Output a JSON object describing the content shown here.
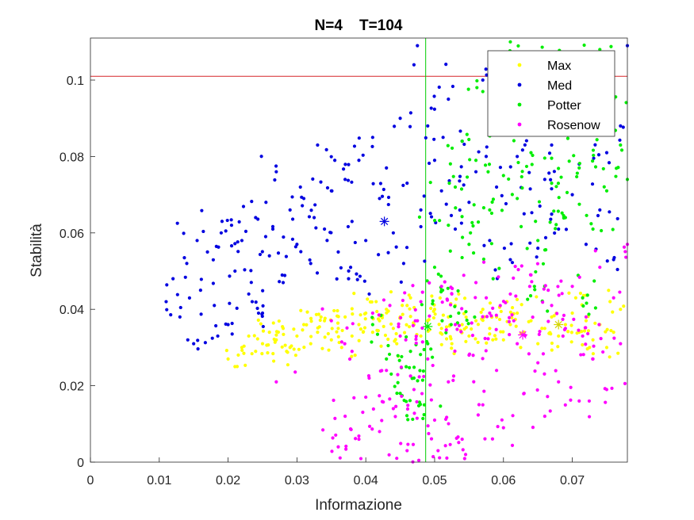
{
  "chart_data": {
    "type": "scatter",
    "title": "N=4    T=104",
    "xlabel": "Informazione",
    "ylabel": "Stabilità",
    "xlim": [
      0,
      0.078
    ],
    "ylim": [
      0,
      0.111
    ],
    "xticks": [
      "0",
      "0.01",
      "0.02",
      "0.03",
      "0.04",
      "0.05",
      "0.06",
      "0.07"
    ],
    "xtick_values": [
      0,
      0.01,
      0.02,
      0.03,
      0.04,
      0.05,
      0.06,
      0.07
    ],
    "yticks": [
      "0",
      "0.02",
      "0.04",
      "0.06",
      "0.08",
      "0.1"
    ],
    "ytick_values": [
      0,
      0.02,
      0.04,
      0.06,
      0.08,
      0.1
    ],
    "grid": false,
    "legend_position": "top-right",
    "reference_lines": [
      {
        "orientation": "horizontal",
        "value": 0.101,
        "color": "#d62728"
      },
      {
        "orientation": "vertical",
        "value": 0.0487,
        "color": "#00cc00"
      }
    ],
    "series": [
      {
        "name": "Max",
        "color": "#ffff00",
        "x_range": [
          0.019,
          0.078
        ],
        "y_range": [
          0.025,
          0.045
        ],
        "centroid": [
          0.068,
          0.036
        ],
        "points": [
          [
            0.02,
            0.027
          ],
          [
            0.021,
            0.025
          ],
          [
            0.022,
            0.03
          ],
          [
            0.023,
            0.033
          ],
          [
            0.024,
            0.029
          ],
          [
            0.025,
            0.031
          ],
          [
            0.026,
            0.034
          ],
          [
            0.027,
            0.032
          ],
          [
            0.028,
            0.035
          ],
          [
            0.029,
            0.03
          ],
          [
            0.03,
            0.033
          ],
          [
            0.031,
            0.036
          ],
          [
            0.032,
            0.031
          ],
          [
            0.033,
            0.034
          ],
          [
            0.034,
            0.037
          ],
          [
            0.035,
            0.032
          ],
          [
            0.036,
            0.035
          ],
          [
            0.037,
            0.038
          ],
          [
            0.038,
            0.033
          ],
          [
            0.039,
            0.036
          ],
          [
            0.04,
            0.039
          ],
          [
            0.041,
            0.034
          ],
          [
            0.042,
            0.037
          ],
          [
            0.043,
            0.04
          ],
          [
            0.044,
            0.035
          ],
          [
            0.045,
            0.038
          ],
          [
            0.046,
            0.041
          ],
          [
            0.047,
            0.036
          ],
          [
            0.048,
            0.033
          ],
          [
            0.049,
            0.037
          ],
          [
            0.05,
            0.04
          ],
          [
            0.051,
            0.035
          ],
          [
            0.052,
            0.038
          ],
          [
            0.053,
            0.041
          ],
          [
            0.054,
            0.036
          ],
          [
            0.055,
            0.033
          ],
          [
            0.056,
            0.037
          ],
          [
            0.057,
            0.04
          ],
          [
            0.058,
            0.035
          ],
          [
            0.059,
            0.038
          ],
          [
            0.06,
            0.032
          ],
          [
            0.061,
            0.036
          ],
          [
            0.062,
            0.039
          ],
          [
            0.063,
            0.034
          ],
          [
            0.064,
            0.037
          ],
          [
            0.065,
            0.031
          ],
          [
            0.066,
            0.035
          ],
          [
            0.067,
            0.038
          ],
          [
            0.068,
            0.033
          ],
          [
            0.069,
            0.036
          ],
          [
            0.07,
            0.039
          ],
          [
            0.071,
            0.034
          ],
          [
            0.072,
            0.037
          ],
          [
            0.073,
            0.032
          ],
          [
            0.074,
            0.036
          ],
          [
            0.075,
            0.03
          ],
          [
            0.076,
            0.034
          ],
          [
            0.077,
            0.04
          ],
          [
            0.0335,
            0.038
          ],
          [
            0.0415,
            0.042
          ],
          [
            0.0465,
            0.043
          ],
          [
            0.0535,
            0.044
          ],
          [
            0.0605,
            0.042
          ],
          [
            0.0705,
            0.043
          ],
          [
            0.0285,
            0.029
          ],
          [
            0.0365,
            0.03
          ],
          [
            0.0445,
            0.031
          ],
          [
            0.0525,
            0.031
          ],
          [
            0.0625,
            0.03
          ],
          [
            0.0725,
            0.03
          ]
        ]
      },
      {
        "name": "Med",
        "color": "#0000e0",
        "x_range": [
          0.011,
          0.078
        ],
        "y_range": [
          0.028,
          0.11
        ],
        "centroid": [
          0.0427,
          0.063
        ],
        "points": [
          [
            0.011,
            0.042
          ],
          [
            0.012,
            0.048
          ],
          [
            0.013,
            0.038
          ],
          [
            0.014,
            0.052
          ],
          [
            0.015,
            0.031
          ],
          [
            0.016,
            0.045
          ],
          [
            0.017,
            0.055
          ],
          [
            0.018,
            0.041
          ],
          [
            0.019,
            0.06
          ],
          [
            0.02,
            0.036
          ],
          [
            0.021,
            0.05
          ],
          [
            0.022,
            0.058
          ],
          [
            0.023,
            0.044
          ],
          [
            0.024,
            0.064
          ],
          [
            0.025,
            0.039
          ],
          [
            0.026,
            0.054
          ],
          [
            0.027,
            0.076
          ],
          [
            0.028,
            0.047
          ],
          [
            0.029,
            0.066
          ],
          [
            0.03,
            0.057
          ],
          [
            0.031,
            0.069
          ],
          [
            0.032,
            0.052
          ],
          [
            0.033,
            0.083
          ],
          [
            0.034,
            0.061
          ],
          [
            0.035,
            0.071
          ],
          [
            0.036,
            0.055
          ],
          [
            0.037,
            0.074
          ],
          [
            0.038,
            0.063
          ],
          [
            0.039,
            0.079
          ],
          [
            0.04,
            0.058
          ],
          [
            0.041,
            0.085
          ],
          [
            0.042,
            0.069
          ],
          [
            0.043,
            0.077
          ],
          [
            0.044,
            0.06
          ],
          [
            0.045,
            0.09
          ],
          [
            0.046,
            0.073
          ],
          [
            0.047,
            0.104
          ],
          [
            0.048,
            0.066
          ],
          [
            0.049,
            0.088
          ],
          [
            0.05,
            0.079
          ],
          [
            0.051,
            0.071
          ],
          [
            0.052,
            0.095
          ],
          [
            0.053,
            0.061
          ],
          [
            0.054,
            0.084
          ],
          [
            0.055,
            0.068
          ],
          [
            0.056,
            0.076
          ],
          [
            0.057,
            0.1
          ],
          [
            0.058,
            0.058
          ],
          [
            0.059,
            0.072
          ],
          [
            0.06,
            0.087
          ],
          [
            0.061,
            0.053
          ],
          [
            0.062,
            0.08
          ],
          [
            0.063,
            0.065
          ],
          [
            0.064,
            0.094
          ],
          [
            0.065,
            0.056
          ],
          [
            0.066,
            0.074
          ],
          [
            0.067,
            0.083
          ],
          [
            0.068,
            0.061
          ],
          [
            0.069,
            0.101
          ],
          [
            0.07,
            0.07
          ],
          [
            0.071,
            0.078
          ],
          [
            0.072,
            0.057
          ],
          [
            0.073,
            0.092
          ],
          [
            0.074,
            0.066
          ],
          [
            0.075,
            0.081
          ],
          [
            0.076,
            0.053
          ],
          [
            0.077,
            0.088
          ],
          [
            0.078,
            0.109
          ],
          [
            0.0155,
            0.058
          ],
          [
            0.0205,
            0.062
          ],
          [
            0.0255,
            0.068
          ],
          [
            0.0305,
            0.072
          ],
          [
            0.0355,
            0.079
          ],
          [
            0.0405,
            0.044
          ],
          [
            0.0455,
            0.052
          ],
          [
            0.0475,
            0.109
          ],
          [
            0.0185,
            0.033
          ],
          [
            0.0235,
            0.042
          ],
          [
            0.0265,
            0.061
          ],
          [
            0.0325,
            0.064
          ],
          [
            0.0375,
            0.048
          ]
        ]
      },
      {
        "name": "Potter",
        "color": "#00ee00",
        "x_range": [
          0.04,
          0.078
        ],
        "y_range": [
          0.01,
          0.11
        ],
        "centroid": [
          0.049,
          0.0355
        ],
        "points": [
          [
            0.041,
            0.036
          ],
          [
            0.043,
            0.027
          ],
          [
            0.045,
            0.018
          ],
          [
            0.047,
            0.022
          ],
          [
            0.049,
            0.031
          ],
          [
            0.05,
            0.051
          ],
          [
            0.051,
            0.045
          ],
          [
            0.052,
            0.062
          ],
          [
            0.053,
            0.072
          ],
          [
            0.054,
            0.084
          ],
          [
            0.055,
            0.057
          ],
          [
            0.056,
            0.079
          ],
          [
            0.057,
            0.097
          ],
          [
            0.058,
            0.066
          ],
          [
            0.059,
            0.088
          ],
          [
            0.06,
            0.075
          ],
          [
            0.061,
            0.11
          ],
          [
            0.062,
            0.069
          ],
          [
            0.063,
            0.093
          ],
          [
            0.064,
            0.081
          ],
          [
            0.065,
            0.058
          ],
          [
            0.066,
            0.105
          ],
          [
            0.067,
            0.073
          ],
          [
            0.068,
            0.09
          ],
          [
            0.069,
            0.064
          ],
          [
            0.07,
            0.099
          ],
          [
            0.071,
            0.077
          ],
          [
            0.072,
            0.086
          ],
          [
            0.073,
            0.061
          ],
          [
            0.074,
            0.108
          ],
          [
            0.075,
            0.071
          ],
          [
            0.076,
            0.095
          ],
          [
            0.077,
            0.083
          ],
          [
            0.078,
            0.074
          ],
          [
            0.0485,
            0.015
          ],
          [
            0.0465,
            0.029
          ],
          [
            0.0535,
            0.039
          ],
          [
            0.0585,
            0.048
          ],
          [
            0.0645,
            0.046
          ],
          [
            0.0715,
            0.043
          ]
        ]
      },
      {
        "name": "Rosenow",
        "color": "#ff00ff",
        "x_range": [
          0.027,
          0.078
        ],
        "y_range": [
          0.0,
          0.057
        ],
        "centroid": [
          0.0628,
          0.0333
        ],
        "points": [
          [
            0.027,
            0.021
          ],
          [
            0.035,
            0.037
          ],
          [
            0.036,
            0.004
          ],
          [
            0.037,
            0.012
          ],
          [
            0.038,
            0.029
          ],
          [
            0.039,
            0.006
          ],
          [
            0.04,
            0.017
          ],
          [
            0.041,
            0.039
          ],
          [
            0.042,
            0.008
          ],
          [
            0.043,
            0.024
          ],
          [
            0.044,
            0.014
          ],
          [
            0.045,
            0.033
          ],
          [
            0.046,
            0.003
          ],
          [
            0.047,
            0.019
          ],
          [
            0.048,
            0.042
          ],
          [
            0.049,
            0.027
          ],
          [
            0.05,
            0.011
          ],
          [
            0.051,
            0.046
          ],
          [
            0.052,
            0.021
          ],
          [
            0.053,
            0.036
          ],
          [
            0.054,
            0.006
          ],
          [
            0.055,
            0.028
          ],
          [
            0.056,
            0.047
          ],
          [
            0.057,
            0.015
          ],
          [
            0.058,
            0.039
          ],
          [
            0.059,
            0.024
          ],
          [
            0.06,
            0.009
          ],
          [
            0.061,
            0.044
          ],
          [
            0.062,
            0.031
          ],
          [
            0.063,
            0.018
          ],
          [
            0.064,
            0.049
          ],
          [
            0.065,
            0.026
          ],
          [
            0.066,
            0.012
          ],
          [
            0.067,
            0.041
          ],
          [
            0.068,
            0.021
          ],
          [
            0.069,
            0.035
          ],
          [
            0.07,
            0.046
          ],
          [
            0.071,
            0.016
          ],
          [
            0.072,
            0.038
          ],
          [
            0.073,
            0.027
          ],
          [
            0.074,
            0.051
          ],
          [
            0.075,
            0.019
          ],
          [
            0.076,
            0.043
          ],
          [
            0.077,
            0.031
          ],
          [
            0.078,
            0.057
          ],
          [
            0.0435,
            0.041
          ],
          [
            0.0475,
            0.037
          ],
          [
            0.0525,
            0.044
          ],
          [
            0.0575,
            0.043
          ],
          [
            0.0615,
            0.037
          ],
          [
            0.0665,
            0.045
          ],
          [
            0.0715,
            0.033
          ],
          [
            0.0445,
            0.001
          ],
          [
            0.0505,
            0.003
          ],
          [
            0.0545,
            0.002
          ]
        ]
      }
    ]
  }
}
